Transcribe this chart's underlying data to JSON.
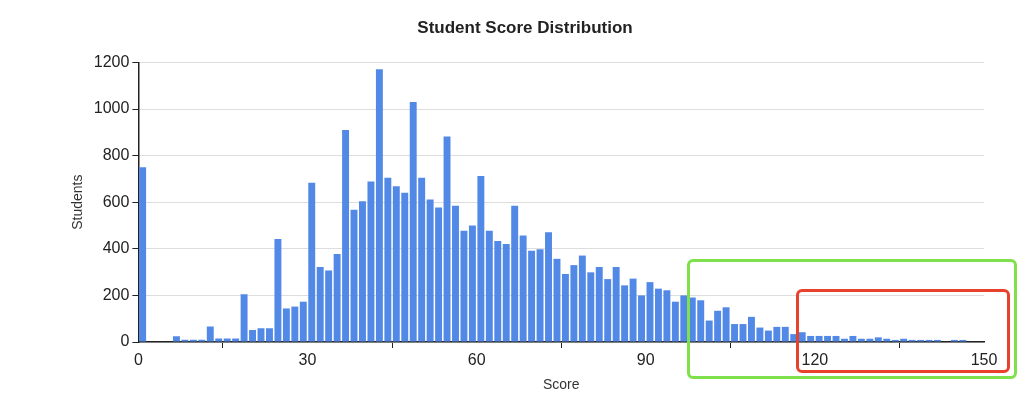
{
  "chart_data": {
    "type": "histogram",
    "title": "Student Score Distribution",
    "xlabel": "Score",
    "ylabel": "Students",
    "bins": [
      0,
      1.5,
      3,
      4.5,
      6,
      7.5,
      9,
      10.5,
      12,
      13.5,
      15,
      16.5,
      18,
      19.5,
      21,
      22.5,
      24,
      25.5,
      27,
      28.5,
      30,
      31.5,
      33,
      34.5,
      36,
      37.5,
      39,
      40.5,
      42,
      43.5,
      45,
      46.5,
      48,
      49.5,
      51,
      52.5,
      54,
      55.5,
      57,
      58.5,
      60,
      61.5,
      63,
      64.5,
      66,
      67.5,
      69,
      70.5,
      72,
      73.5,
      75,
      76.5,
      78,
      79.5,
      81,
      82.5,
      84,
      85.5,
      87,
      88.5,
      90,
      91.5,
      93,
      94.5,
      96,
      97.5,
      99,
      100.5,
      102,
      103.5,
      105,
      106.5,
      108,
      109.5,
      111,
      112.5,
      114,
      115.5,
      117,
      118.5,
      120,
      121.5,
      123,
      124.5,
      126,
      127.5,
      129,
      130.5,
      132,
      133.5,
      135,
      136.5,
      138,
      139.5,
      141,
      142.5,
      144,
      145.5,
      147,
      148.5,
      150
    ],
    "values": [
      750,
      0,
      0,
      0,
      25,
      10,
      10,
      10,
      67,
      15,
      15,
      15,
      205,
      52,
      59,
      59,
      442,
      144,
      152,
      173,
      683,
      322,
      307,
      378,
      910,
      568,
      604,
      689,
      1171,
      705,
      668,
      641,
      1030,
      705,
      612,
      577,
      882,
      585,
      477,
      500,
      712,
      477,
      434,
      421,
      585,
      457,
      392,
      398,
      471,
      357,
      292,
      330,
      371,
      299,
      322,
      270,
      322,
      243,
      272,
      200,
      257,
      229,
      222,
      173,
      200,
      191,
      179,
      92,
      134,
      149,
      77,
      77,
      108,
      62,
      49,
      65,
      65,
      34,
      42,
      26,
      26,
      26,
      26,
      14,
      26,
      14,
      14,
      20,
      14,
      9,
      14,
      9,
      9,
      9,
      9,
      0,
      9,
      9,
      0,
      0
    ],
    "color": "#5289e6",
    "xlim": [
      0,
      150
    ],
    "xticks": [
      0,
      30,
      60,
      90,
      120,
      150
    ],
    "ylim": [
      0,
      1200
    ],
    "yticks": [
      0,
      200,
      400,
      600,
      800,
      1000,
      1200
    ],
    "grid": "y"
  }
}
